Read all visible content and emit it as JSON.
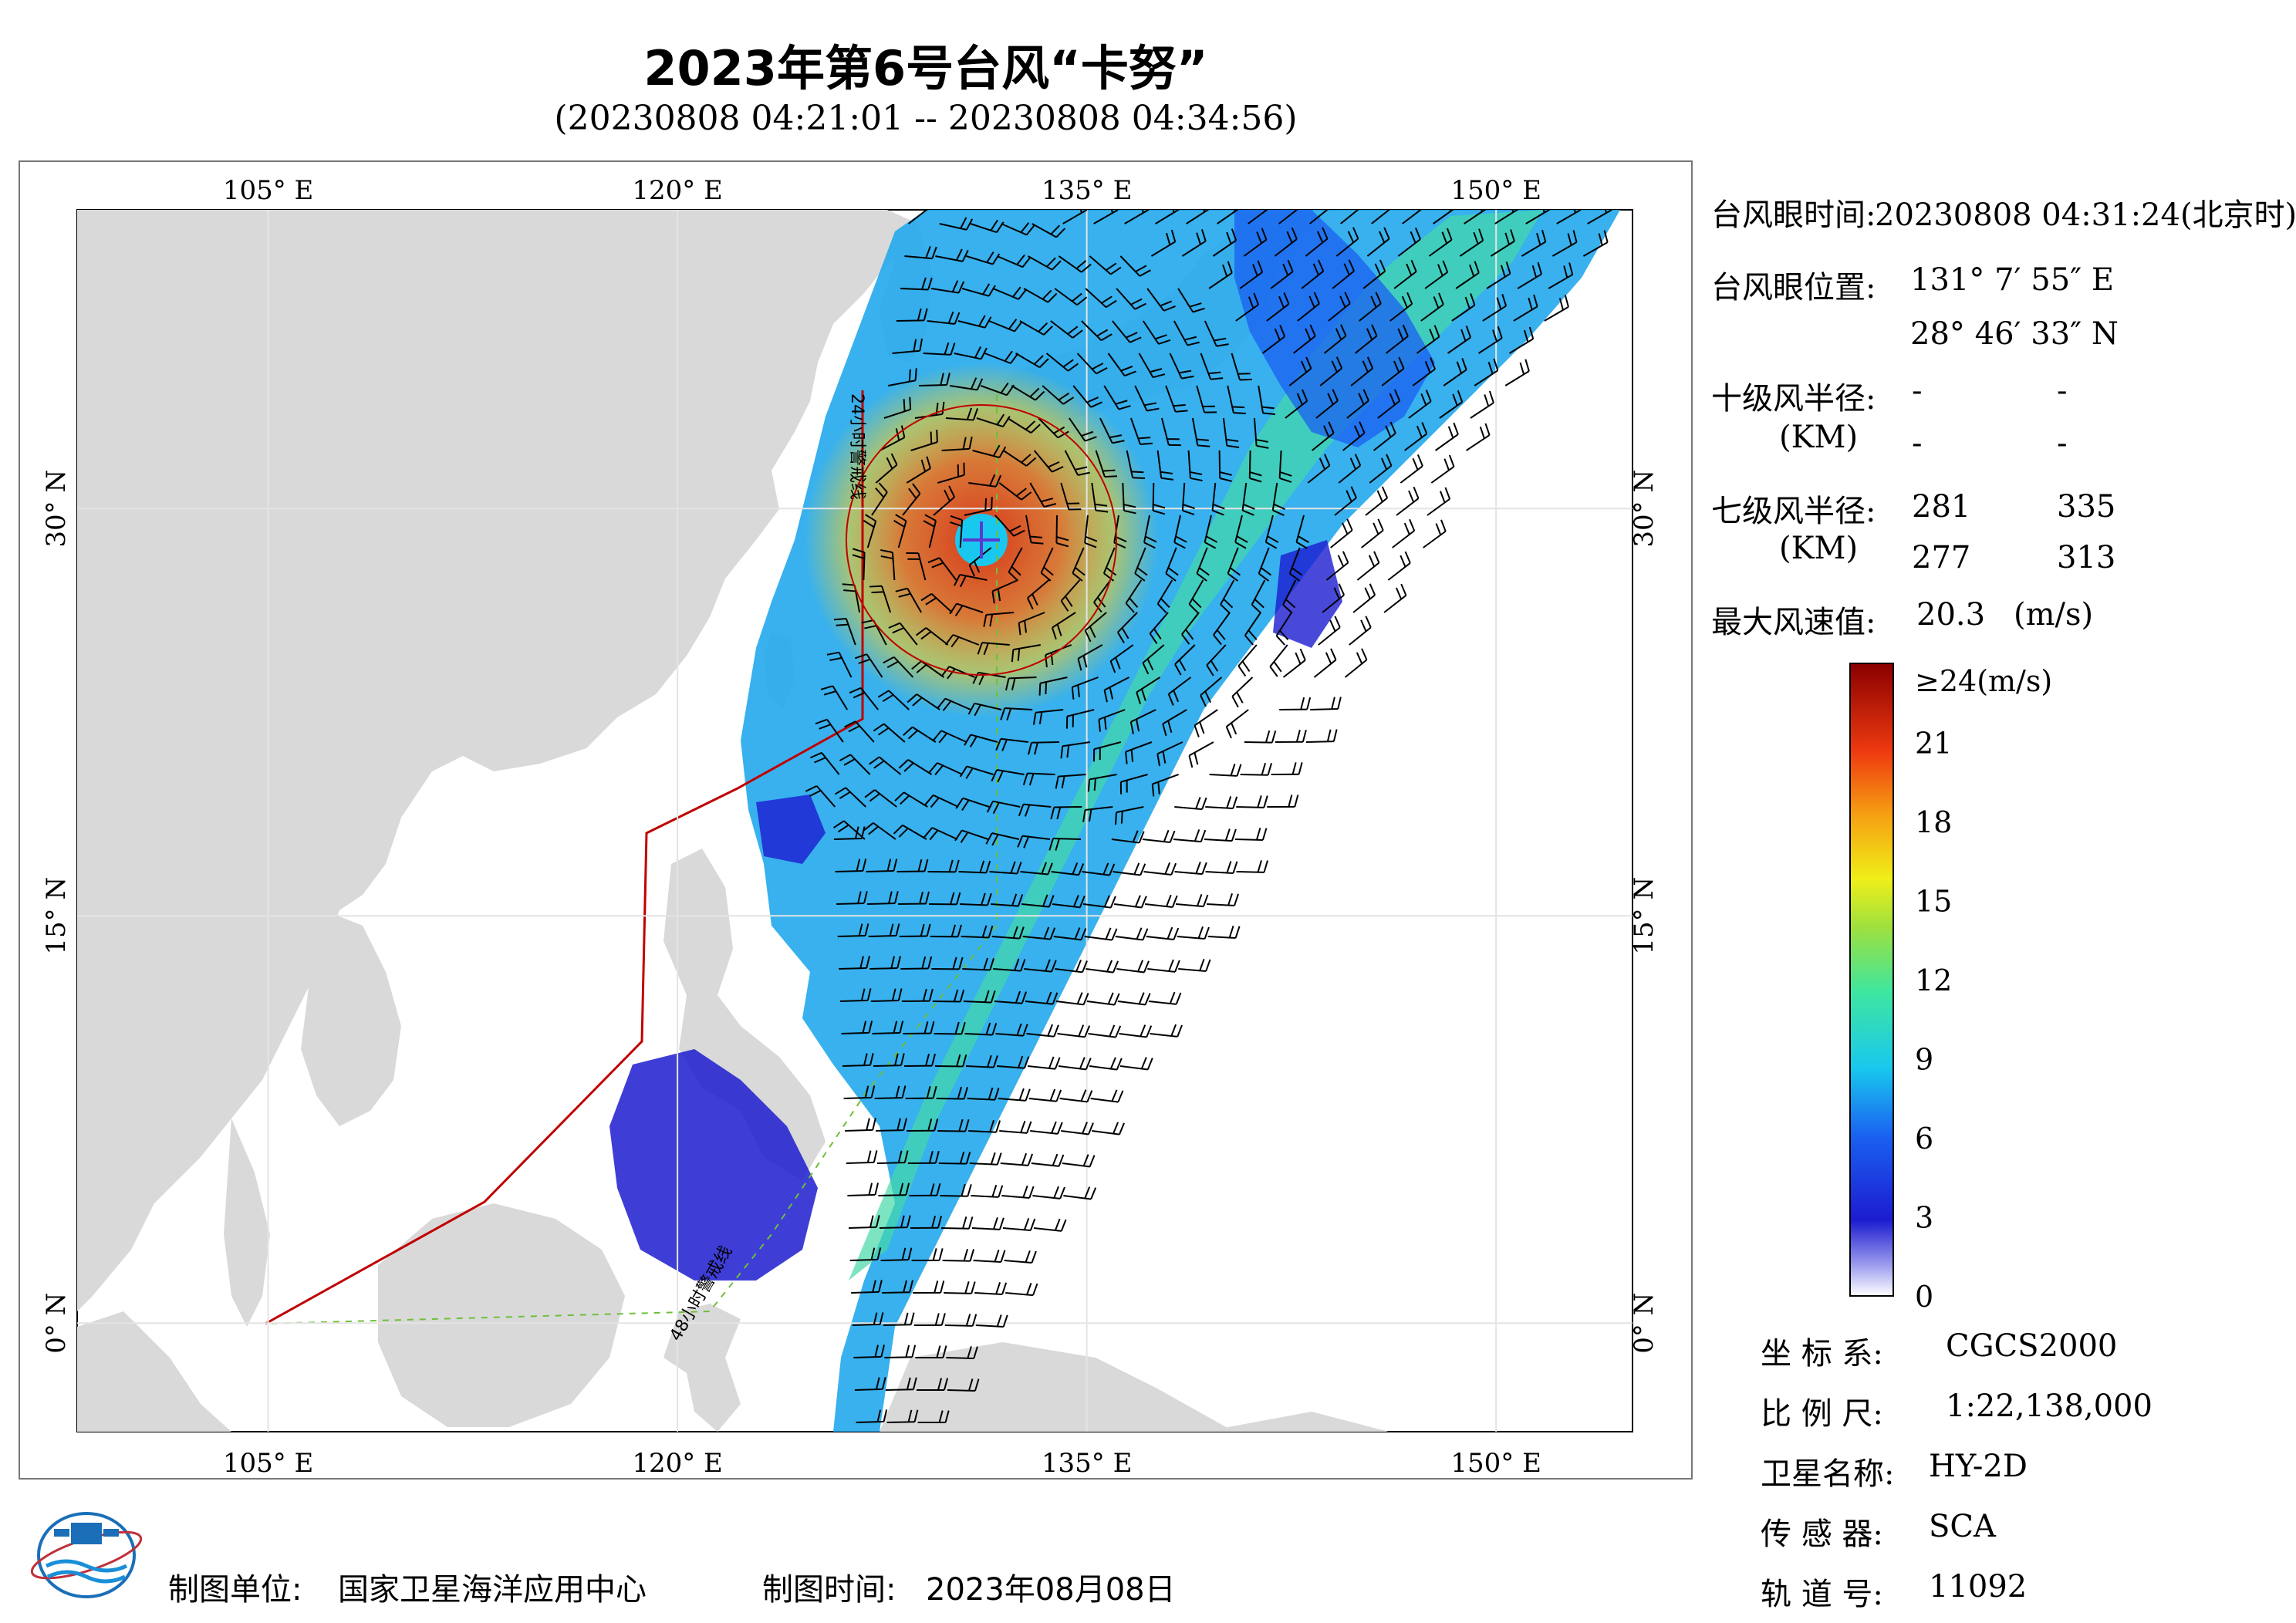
{
  "header": {
    "title": "2023年第6号台风“卡努”",
    "subtitle": "(20230808 04:21:01 -- 20230808 04:34:56)"
  },
  "map": {
    "lon_labels": [
      "105° E",
      "120° E",
      "135° E",
      "150° E"
    ],
    "lat_labels": [
      "30° N",
      "15° N",
      "0° N"
    ],
    "lon_values": [
      105,
      120,
      135,
      150
    ],
    "lat_values": [
      30,
      15,
      0
    ],
    "lon_range": [
      98,
      155
    ],
    "lat_range": [
      -4,
      41
    ],
    "eye_lon": 131.13,
    "eye_lat": 28.78,
    "line_labels": [
      "24小时警戒线",
      "48小时警戒线"
    ],
    "colors": {
      "land": "#d9d9d9",
      "sea": "#ffffff",
      "warning_line": "#c00000",
      "barb": "#000000"
    }
  },
  "info": {
    "eye_time_label": "台风眼时间:",
    "eye_time_value": "20230808 04:31:24(北京时)",
    "eye_pos_label": "台风眼位置:",
    "eye_lon": "131° 7′ 55″ E",
    "eye_lat": "28° 46′ 33″ N",
    "r10_label": "十级风半径:",
    "r10_unit": "(KM)",
    "r10_values": [
      "-",
      "-",
      "-",
      "-"
    ],
    "r7_label": "七级风半径:",
    "r7_unit": "(KM)",
    "r7_values": [
      "281",
      "335",
      "277",
      "313"
    ],
    "max_label": "最大风速值:",
    "max_value": "20.3",
    "max_unit": "(m/s)"
  },
  "colorbar": {
    "labels": [
      "≥24(m/s)",
      "21",
      "18",
      "15",
      "12",
      "9",
      "6",
      "3",
      "0"
    ],
    "values": [
      24,
      21,
      18,
      15,
      12,
      9,
      6,
      3,
      0
    ]
  },
  "meta": {
    "crs_label": "坐 标 系:",
    "crs_value": "CGCS2000",
    "scale_label": "比 例 尺:",
    "scale_value": "1:22,138,000",
    "sat_label": "卫星名称:",
    "sat_value": "HY-2D",
    "sensor_label": "传 感 器:",
    "sensor_value": "SCA",
    "orbit_label": "轨 道 号:",
    "orbit_value": "11092"
  },
  "footer": {
    "maker_label": "制图单位:",
    "maker_value": "国家卫星海洋应用中心",
    "time_label": "制图时间:",
    "time_value": "2023年08月08日"
  }
}
